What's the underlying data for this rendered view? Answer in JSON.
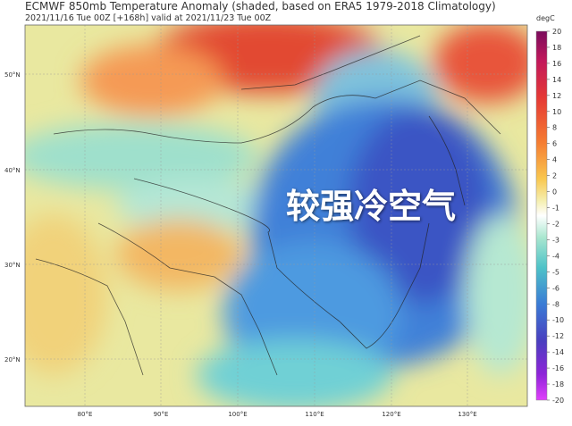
{
  "header": {
    "title": "ECMWF 850mb Temperature Anomaly (shaded, based on ERA5 1979-2018 Climatology)",
    "subtitle": "2021/11/16 Tue 00Z [+168h] valid at 2021/11/23 Tue 00Z"
  },
  "map": {
    "overlay_text": "较强冷空气",
    "lat_labels": [
      "50°N",
      "40°N",
      "30°N",
      "20°N"
    ],
    "lon_labels": [
      "80°E",
      "90°E",
      "100°E",
      "110°E",
      "120°E",
      "130°E"
    ]
  },
  "colorbar": {
    "unit": "degC",
    "ticks": [
      20,
      18,
      16,
      14,
      12,
      10,
      8,
      6,
      4,
      2,
      0,
      -1,
      -2,
      -3,
      -4,
      -5,
      -6,
      -8,
      -10,
      -12,
      -14,
      -16,
      -18,
      -20
    ]
  }
}
